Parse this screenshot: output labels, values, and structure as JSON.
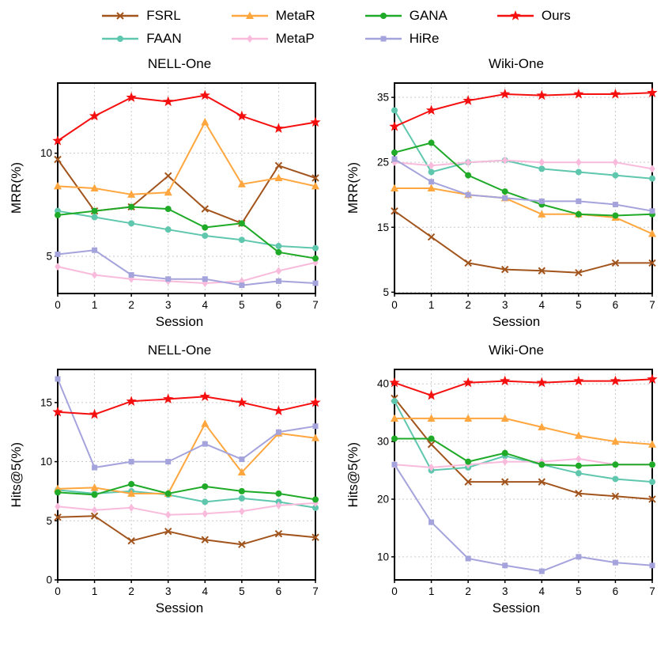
{
  "legend": {
    "items": [
      {
        "label": "FSRL",
        "color": "#A2541D",
        "marker": "x-cross"
      },
      {
        "label": "FAAN",
        "color": "#5FC7AE",
        "marker": "circle"
      },
      {
        "label": "MetaR",
        "color": "#FFA63E",
        "marker": "triangle-up"
      },
      {
        "label": "MetaP",
        "color": "#F9BBDC",
        "marker": "diamond"
      },
      {
        "label": "GANA",
        "color": "#1FAA28",
        "marker": "circle"
      },
      {
        "label": "HiRe",
        "color": "#A5A3DC",
        "marker": "square"
      },
      {
        "label": "Ours",
        "color": "#F50F0F",
        "marker": "star"
      }
    ]
  },
  "chart_data": [
    {
      "type": "line",
      "title": "NELL-One",
      "xlabel": "Session",
      "ylabel": "MRR(%)",
      "x": [
        0,
        1,
        2,
        3,
        4,
        5,
        6,
        7
      ],
      "ylim": [
        3.2,
        13.4
      ],
      "yticks": [
        5,
        10
      ],
      "grid": true,
      "series": [
        {
          "name": "FSRL",
          "values": [
            9.7,
            7.2,
            7.4,
            8.9,
            7.3,
            6.6,
            9.4,
            8.8
          ]
        },
        {
          "name": "FAAN",
          "values": [
            7.2,
            6.9,
            6.6,
            6.3,
            6.0,
            5.8,
            5.5,
            5.4
          ]
        },
        {
          "name": "MetaR",
          "values": [
            8.4,
            8.3,
            8.0,
            8.1,
            11.5,
            8.5,
            8.8,
            8.4
          ]
        },
        {
          "name": "MetaP",
          "values": [
            4.5,
            4.1,
            3.9,
            3.8,
            3.7,
            3.8,
            4.3,
            4.7
          ]
        },
        {
          "name": "GANA",
          "values": [
            7.0,
            7.2,
            7.4,
            7.3,
            6.4,
            6.6,
            5.2,
            4.9
          ]
        },
        {
          "name": "HiRe",
          "values": [
            5.1,
            5.3,
            4.1,
            3.9,
            3.9,
            3.6,
            3.8,
            3.7
          ]
        },
        {
          "name": "Ours",
          "values": [
            10.6,
            11.8,
            12.7,
            12.5,
            12.8,
            11.8,
            11.2,
            11.5
          ]
        }
      ]
    },
    {
      "type": "line",
      "title": "Wiki-One",
      "xlabel": "Session",
      "ylabel": "MRR(%)",
      "x": [
        0,
        1,
        2,
        3,
        4,
        5,
        6,
        7
      ],
      "ylim": [
        4.8,
        37.2
      ],
      "yticks": [
        5,
        15,
        25,
        35
      ],
      "grid": true,
      "series": [
        {
          "name": "FSRL",
          "values": [
            17.5,
            13.5,
            9.5,
            8.5,
            8.3,
            8.0,
            9.5,
            9.5
          ]
        },
        {
          "name": "FAAN",
          "values": [
            33.0,
            23.5,
            25.0,
            25.3,
            24.0,
            23.5,
            23.0,
            22.5
          ]
        },
        {
          "name": "MetaR",
          "values": [
            21.0,
            21.0,
            20.0,
            19.5,
            17.0,
            17.0,
            16.5,
            14.0
          ]
        },
        {
          "name": "MetaP",
          "values": [
            25.0,
            24.5,
            25.0,
            25.3,
            25.0,
            25.0,
            25.0,
            24.0
          ]
        },
        {
          "name": "GANA",
          "values": [
            26.5,
            28.0,
            23.0,
            20.5,
            18.5,
            17.0,
            16.8,
            17.0
          ]
        },
        {
          "name": "HiRe",
          "values": [
            25.5,
            22.0,
            20.0,
            19.5,
            19.0,
            19.0,
            18.5,
            17.5
          ]
        },
        {
          "name": "Ours",
          "values": [
            30.5,
            33.0,
            34.5,
            35.5,
            35.3,
            35.5,
            35.5,
            35.7
          ]
        }
      ]
    },
    {
      "type": "line",
      "title": "NELL-One",
      "xlabel": "Session",
      "ylabel": "Hits@5(%)",
      "x": [
        0,
        1,
        2,
        3,
        4,
        5,
        6,
        7
      ],
      "ylim": [
        0,
        17.8
      ],
      "yticks": [
        0,
        5,
        10,
        15
      ],
      "grid": true,
      "series": [
        {
          "name": "FSRL",
          "values": [
            5.3,
            5.4,
            3.3,
            4.1,
            3.4,
            3.0,
            3.9,
            3.6
          ]
        },
        {
          "name": "FAAN",
          "values": [
            7.6,
            7.3,
            7.5,
            7.2,
            6.6,
            6.9,
            6.6,
            6.1
          ]
        },
        {
          "name": "MetaR",
          "values": [
            7.7,
            7.8,
            7.3,
            7.3,
            13.2,
            9.1,
            12.4,
            12.0
          ]
        },
        {
          "name": "MetaP",
          "values": [
            6.2,
            5.9,
            6.1,
            5.5,
            5.6,
            5.8,
            6.3,
            6.5
          ]
        },
        {
          "name": "GANA",
          "values": [
            7.4,
            7.2,
            8.1,
            7.3,
            7.9,
            7.5,
            7.3,
            6.8
          ]
        },
        {
          "name": "HiRe",
          "values": [
            17.0,
            9.5,
            10.0,
            10.0,
            11.5,
            10.2,
            12.5,
            13.0
          ]
        },
        {
          "name": "Ours",
          "values": [
            14.2,
            14.0,
            15.1,
            15.3,
            15.5,
            15.0,
            14.3,
            15.0
          ]
        }
      ]
    },
    {
      "type": "line",
      "title": "Wiki-One",
      "xlabel": "Session",
      "ylabel": "Hits@5(%)",
      "x": [
        0,
        1,
        2,
        3,
        4,
        5,
        6,
        7
      ],
      "ylim": [
        6,
        42.5
      ],
      "yticks": [
        10,
        20,
        30,
        40
      ],
      "grid": true,
      "series": [
        {
          "name": "FSRL",
          "values": [
            37.5,
            29.5,
            23.0,
            23.0,
            23.0,
            21.0,
            20.5,
            20.0
          ]
        },
        {
          "name": "FAAN",
          "values": [
            37.0,
            25.0,
            25.5,
            27.5,
            26.0,
            24.5,
            23.5,
            23.0
          ]
        },
        {
          "name": "MetaR",
          "values": [
            34.0,
            34.0,
            34.0,
            34.0,
            32.5,
            31.0,
            30.0,
            29.5
          ]
        },
        {
          "name": "MetaP",
          "values": [
            26.0,
            25.5,
            26.0,
            26.5,
            26.5,
            27.0,
            26.0,
            26.0
          ]
        },
        {
          "name": "GANA",
          "values": [
            30.5,
            30.5,
            26.5,
            28.0,
            26.0,
            25.8,
            26.0,
            26.0
          ]
        },
        {
          "name": "HiRe",
          "values": [
            26.0,
            16.0,
            9.7,
            8.5,
            7.5,
            10.0,
            9.0,
            8.5
          ]
        },
        {
          "name": "Ours",
          "values": [
            40.2,
            38.0,
            40.2,
            40.5,
            40.2,
            40.5,
            40.5,
            40.8
          ]
        }
      ]
    }
  ]
}
